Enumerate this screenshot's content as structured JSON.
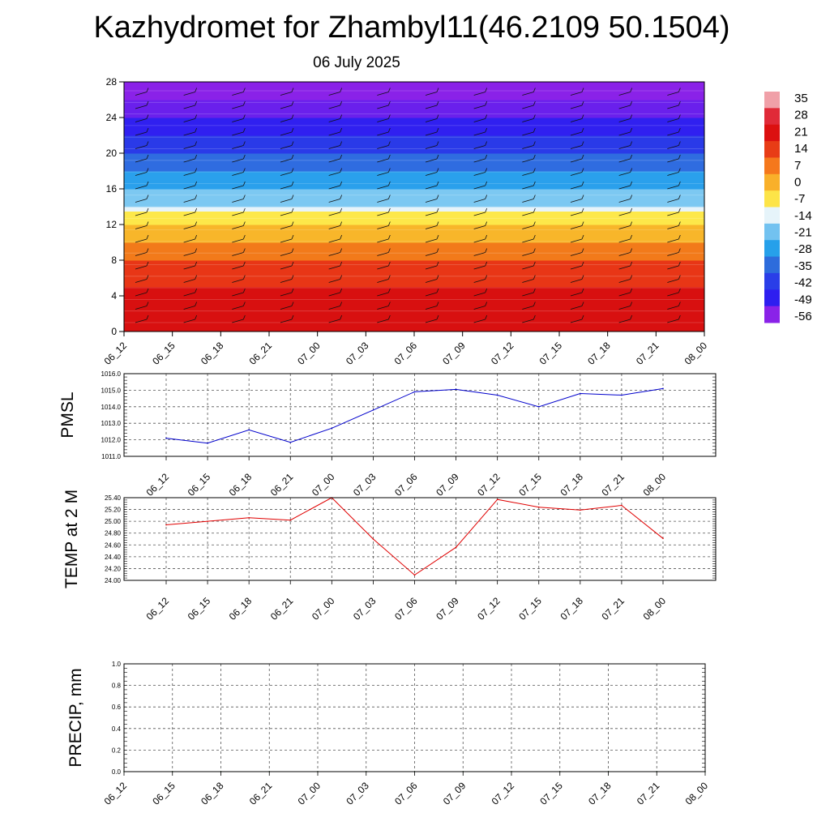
{
  "header": {
    "title": "Kazhydromet for Zhambyl11(46.2109 50.1504)",
    "subtitle": "06 July 2025"
  },
  "chart_data": [
    {
      "type": "heatmap",
      "x_ticks": [
        "06_12",
        "06_15",
        "06_18",
        "06_21",
        "07_00",
        "07_03",
        "07_06",
        "07_09",
        "07_12",
        "07_15",
        "07_18",
        "07_21",
        "08_00"
      ],
      "y_ticks": [
        "0",
        "4",
        "8",
        "12",
        "16",
        "20",
        "24",
        "28"
      ],
      "ylim": [
        0,
        28
      ],
      "bands": [
        {
          "from": 0,
          "to": 5,
          "color": "#d81010"
        },
        {
          "from": 5,
          "to": 8,
          "color": "#e83616"
        },
        {
          "from": 8,
          "to": 10,
          "color": "#f27a1a"
        },
        {
          "from": 10,
          "to": 12,
          "color": "#f8b62a"
        },
        {
          "from": 12,
          "to": 13.5,
          "color": "#fde84a"
        },
        {
          "from": 13.5,
          "to": 14,
          "color": "#e8f4fa"
        },
        {
          "from": 14,
          "to": 16,
          "color": "#7cc8f2"
        },
        {
          "from": 16,
          "to": 18,
          "color": "#2aa0ec"
        },
        {
          "from": 18,
          "to": 20,
          "color": "#2f6ce0"
        },
        {
          "from": 20,
          "to": 22,
          "color": "#2a3ae8"
        },
        {
          "from": 22,
          "to": 24,
          "color": "#3020f0"
        },
        {
          "from": 24,
          "to": 26,
          "color": "#6a20ec"
        },
        {
          "from": 26,
          "to": 28,
          "color": "#8a22e8"
        }
      ],
      "colorbar": {
        "labels": [
          "35",
          "28",
          "21",
          "14",
          "7",
          "0",
          "-7",
          "-14",
          "-21",
          "-28",
          "-35",
          "-42",
          "-49",
          "-56"
        ],
        "colors": [
          "#f0a0a8",
          "#e02a38",
          "#dc1010",
          "#e83c16",
          "#f5781c",
          "#f9b02a",
          "#fde448",
          "#e6f4fa",
          "#72c2f0",
          "#26a0ea",
          "#2d6cdc",
          "#2a3ee8",
          "#2e1ef0",
          "#8a22e8"
        ]
      }
    },
    {
      "type": "line",
      "ylabel": "PMSL",
      "x": [
        "06_12",
        "06_15",
        "06_18",
        "06_21",
        "07_00",
        "07_03",
        "07_06",
        "07_09",
        "07_12",
        "07_15",
        "07_18",
        "07_21",
        "08_00"
      ],
      "values": [
        1012.1,
        1011.8,
        1012.6,
        1011.85,
        1012.7,
        1013.8,
        1014.9,
        1015.05,
        1014.7,
        1014.0,
        1014.8,
        1014.7,
        1015.1
      ],
      "ylim": [
        1011.0,
        1016.0
      ],
      "y_ticks": [
        "1011.0",
        "1012.0",
        "1013.0",
        "1014.0",
        "1015.0",
        "1016.0"
      ],
      "color": "#0000cc",
      "grid": true
    },
    {
      "type": "line",
      "ylabel": "TEMP at 2 M",
      "x": [
        "06_12",
        "06_15",
        "06_18",
        "06_21",
        "07_00",
        "07_03",
        "07_06",
        "07_09",
        "07_12",
        "07_15",
        "07_18",
        "07_21",
        "08_00"
      ],
      "values": [
        24.94,
        25.0,
        25.06,
        25.02,
        25.4,
        24.7,
        24.09,
        24.56,
        25.37,
        25.24,
        25.19,
        25.27,
        24.71
      ],
      "ylim": [
        24.0,
        25.4
      ],
      "y_ticks": [
        "24.00",
        "24.20",
        "24.40",
        "24.60",
        "24.80",
        "25.00",
        "25.20",
        "25.40"
      ],
      "color": "#e00000",
      "grid": true
    },
    {
      "type": "line",
      "ylabel": "PRECIP, mm",
      "x": [
        "06_12",
        "06_15",
        "06_18",
        "06_21",
        "07_00",
        "07_03",
        "07_06",
        "07_09",
        "07_12",
        "07_15",
        "07_18",
        "07_21",
        "08_00"
      ],
      "values": [
        0,
        0,
        0,
        0,
        0,
        0,
        0,
        0,
        0,
        0,
        0,
        0,
        0
      ],
      "ylim": [
        0.0,
        1.0
      ],
      "y_ticks": [
        "0.0",
        "0.2",
        "0.4",
        "0.6",
        "0.8",
        "1.0"
      ],
      "color": "#006400",
      "grid": true
    }
  ]
}
